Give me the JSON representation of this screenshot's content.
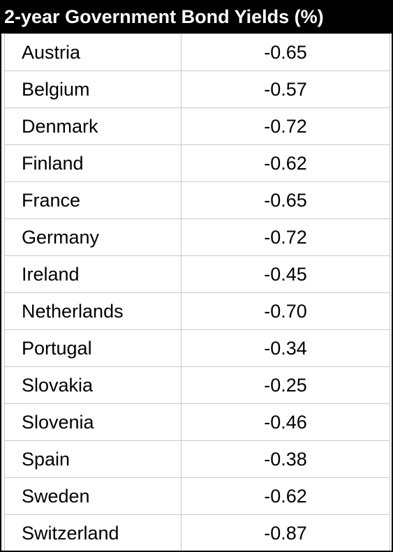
{
  "chart_data": {
    "type": "table",
    "title": "2-year Government Bond Yields (%)",
    "rows": [
      {
        "country": "Austria",
        "value": "-0.65"
      },
      {
        "country": "Belgium",
        "value": "-0.57"
      },
      {
        "country": "Denmark",
        "value": "-0.72"
      },
      {
        "country": "Finland",
        "value": "-0.62"
      },
      {
        "country": "France",
        "value": "-0.65"
      },
      {
        "country": "Germany",
        "value": "-0.72"
      },
      {
        "country": "Ireland",
        "value": "-0.45"
      },
      {
        "country": "Netherlands",
        "value": "-0.70"
      },
      {
        "country": "Portugal",
        "value": "-0.34"
      },
      {
        "country": "Slovakia",
        "value": "-0.25"
      },
      {
        "country": "Slovenia",
        "value": "-0.46"
      },
      {
        "country": "Spain",
        "value": "-0.38"
      },
      {
        "country": "Sweden",
        "value": "-0.62"
      },
      {
        "country": "Switzerland",
        "value": "-0.87"
      }
    ]
  }
}
